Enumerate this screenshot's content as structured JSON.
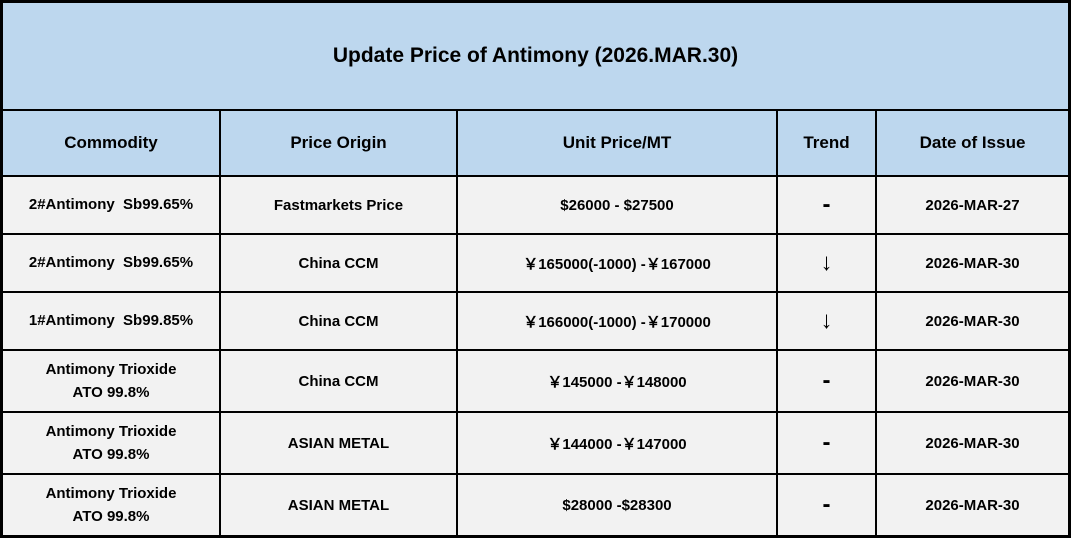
{
  "title": "Update Price of Antimony (2026.MAR.30)",
  "colors": {
    "header_bg": "#bdd7ee",
    "row_bg": "#f2f2f2",
    "border": "#000000",
    "text": "#000000"
  },
  "table": {
    "columns": [
      "Commodity",
      "Price Origin",
      "Unit Price/MT",
      "Trend",
      "Date of Issue"
    ],
    "rows": [
      {
        "commodity": "2#Antimony  Sb99.65%",
        "origin": "Fastmarkets Price",
        "price": "$26000 - $27500",
        "trend": "-",
        "date": "2026-MAR-27"
      },
      {
        "commodity": "2#Antimony  Sb99.65%",
        "origin": "China CCM",
        "price": "￥165000(-1000) -￥167000",
        "trend": "↓",
        "date": "2026-MAR-30"
      },
      {
        "commodity": "1#Antimony  Sb99.85%",
        "origin": "China CCM",
        "price": "￥166000(-1000) -￥170000",
        "trend": "↓",
        "date": "2026-MAR-30"
      },
      {
        "commodity": "Antimony Trioxide\nATO 99.8%",
        "origin": "China CCM",
        "price": "￥145000 -￥148000",
        "trend": "-",
        "date": "2026-MAR-30"
      },
      {
        "commodity": "Antimony Trioxide\nATO 99.8%",
        "origin": "ASIAN METAL",
        "price": "￥144000 -￥147000",
        "trend": "-",
        "date": "2026-MAR-30"
      },
      {
        "commodity": "Antimony Trioxide\nATO 99.8%",
        "origin": "ASIAN METAL",
        "price": "$28000 -$28300",
        "trend": "-",
        "date": "2026-MAR-30"
      }
    ]
  }
}
